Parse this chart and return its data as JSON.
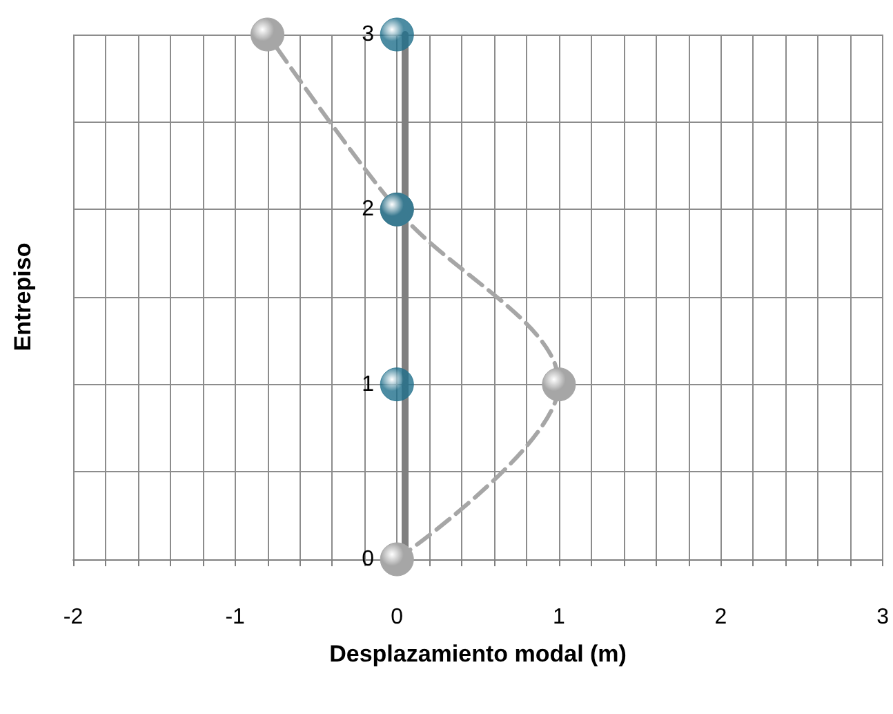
{
  "chart_data": {
    "type": "line",
    "xlabel": "Desplazamiento modal (m)",
    "ylabel": "Entrepiso",
    "xlim": [
      -2,
      3
    ],
    "ylim": [
      0,
      3
    ],
    "xticks": [
      -2,
      {
        "value": -1.8,
        "label": null
      },
      {
        "value": -1.6,
        "label": null
      },
      {
        "value": -1.4,
        "label": null
      },
      {
        "value": -1.2,
        "label": null
      },
      -1,
      {
        "value": -0.8,
        "label": null
      },
      {
        "value": -0.6,
        "label": null
      },
      {
        "value": -0.4,
        "label": null
      },
      {
        "value": -0.2,
        "label": null
      },
      0,
      {
        "value": 0.2,
        "label": null
      },
      {
        "value": 0.4,
        "label": null
      },
      {
        "value": 0.6,
        "label": null
      },
      {
        "value": 0.8,
        "label": null
      },
      1,
      {
        "value": 1.2,
        "label": null
      },
      {
        "value": 1.4,
        "label": null
      },
      {
        "value": 1.6,
        "label": null
      },
      {
        "value": 1.8,
        "label": null
      },
      2,
      {
        "value": 2.2,
        "label": null
      },
      {
        "value": 2.4,
        "label": null
      },
      {
        "value": 2.6,
        "label": null
      },
      {
        "value": 2.8,
        "label": null
      },
      3
    ],
    "yticks": [
      0,
      {
        "value": 0.5,
        "label": null
      },
      1,
      {
        "value": 1.5,
        "label": null
      },
      2,
      {
        "value": 2.5,
        "label": null
      },
      3
    ],
    "grid": true,
    "series": [
      {
        "color": "#a6a6a6",
        "line_style": "dashed",
        "marker": "circle",
        "x": [
          0,
          1,
          0,
          -0.8
        ],
        "values": [
          0,
          1,
          2,
          3
        ]
      },
      {
        "type": "scatter",
        "color": "#1f6f8b",
        "marker": "circle",
        "x": [
          0,
          0,
          0
        ],
        "values": [
          1,
          2,
          3
        ]
      }
    ]
  }
}
